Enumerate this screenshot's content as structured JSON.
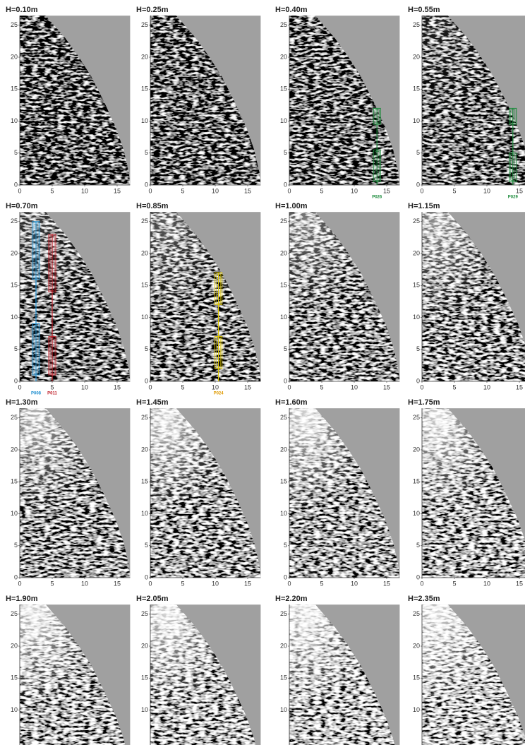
{
  "panels": [
    {
      "title": "H=0.10m",
      "yticks": [
        "0",
        "5",
        "10",
        "15",
        "20",
        "25"
      ],
      "xticks": [
        "0",
        "5",
        "10",
        "15"
      ]
    },
    {
      "title": "H=0.25m",
      "yticks": [
        "0",
        "5",
        "10",
        "15",
        "20",
        "25"
      ],
      "xticks": [
        "0",
        "5",
        "10",
        "15"
      ]
    },
    {
      "title": "H=0.40m",
      "yticks": [
        "0",
        "5",
        "10",
        "15",
        "20",
        "25"
      ],
      "xticks": [
        "0",
        "5",
        "10",
        "15"
      ],
      "annotations": [
        "P026"
      ]
    },
    {
      "title": "H=0.55m",
      "yticks": [
        "0",
        "5",
        "10",
        "15",
        "20",
        "25"
      ],
      "xticks": [
        "0",
        "5",
        "10",
        "15"
      ],
      "annotations": [
        "P029"
      ]
    },
    {
      "title": "H=0.70m",
      "yticks": [
        "0",
        "5",
        "10",
        "15",
        "20",
        "25"
      ],
      "xticks": [
        "0",
        "5",
        "10",
        "15"
      ],
      "annotations": [
        "P008",
        "P011"
      ]
    },
    {
      "title": "H=0.85m",
      "yticks": [
        "0",
        "5",
        "10",
        "15",
        "20",
        "25"
      ],
      "xticks": [
        "0",
        "5",
        "10",
        "15"
      ],
      "annotations": [
        "P024"
      ]
    },
    {
      "title": "H=1.00m",
      "yticks": [
        "0",
        "5",
        "10",
        "15",
        "20",
        "25"
      ],
      "xticks": [
        "0",
        "5",
        "10",
        "15"
      ]
    },
    {
      "title": "H=1.15m",
      "yticks": [
        "0",
        "5",
        "10",
        "15",
        "20",
        "25"
      ],
      "xticks": [
        "0",
        "5",
        "10",
        "15"
      ]
    },
    {
      "title": "H=1.30m",
      "yticks": [
        "0",
        "5",
        "10",
        "15",
        "20",
        "25"
      ],
      "xticks": [
        "0",
        "5",
        "10",
        "15"
      ]
    },
    {
      "title": "H=1.45m",
      "yticks": [
        "0",
        "5",
        "10",
        "15",
        "20",
        "25"
      ],
      "xticks": [
        "0",
        "5",
        "10",
        "15"
      ]
    },
    {
      "title": "H=1.60m",
      "yticks": [
        "0",
        "5",
        "10",
        "15",
        "20",
        "25"
      ],
      "xticks": [
        "0",
        "5",
        "10",
        "15"
      ]
    },
    {
      "title": "H=1.75m",
      "yticks": [
        "0",
        "5",
        "10",
        "15",
        "20",
        "25"
      ],
      "xticks": [
        "0",
        "5",
        "10",
        "15"
      ]
    },
    {
      "title": "H=1.90m",
      "yticks": [
        "10",
        "15",
        "20",
        "25"
      ],
      "xticks": []
    },
    {
      "title": "H=2.05m",
      "yticks": [
        "10",
        "15",
        "20",
        "25"
      ],
      "xticks": []
    },
    {
      "title": "H=2.20m",
      "yticks": [
        "10",
        "15",
        "20",
        "25"
      ],
      "xticks": []
    },
    {
      "title": "H=2.35m",
      "yticks": [
        "10",
        "15",
        "20",
        "25"
      ],
      "xticks": []
    }
  ]
}
